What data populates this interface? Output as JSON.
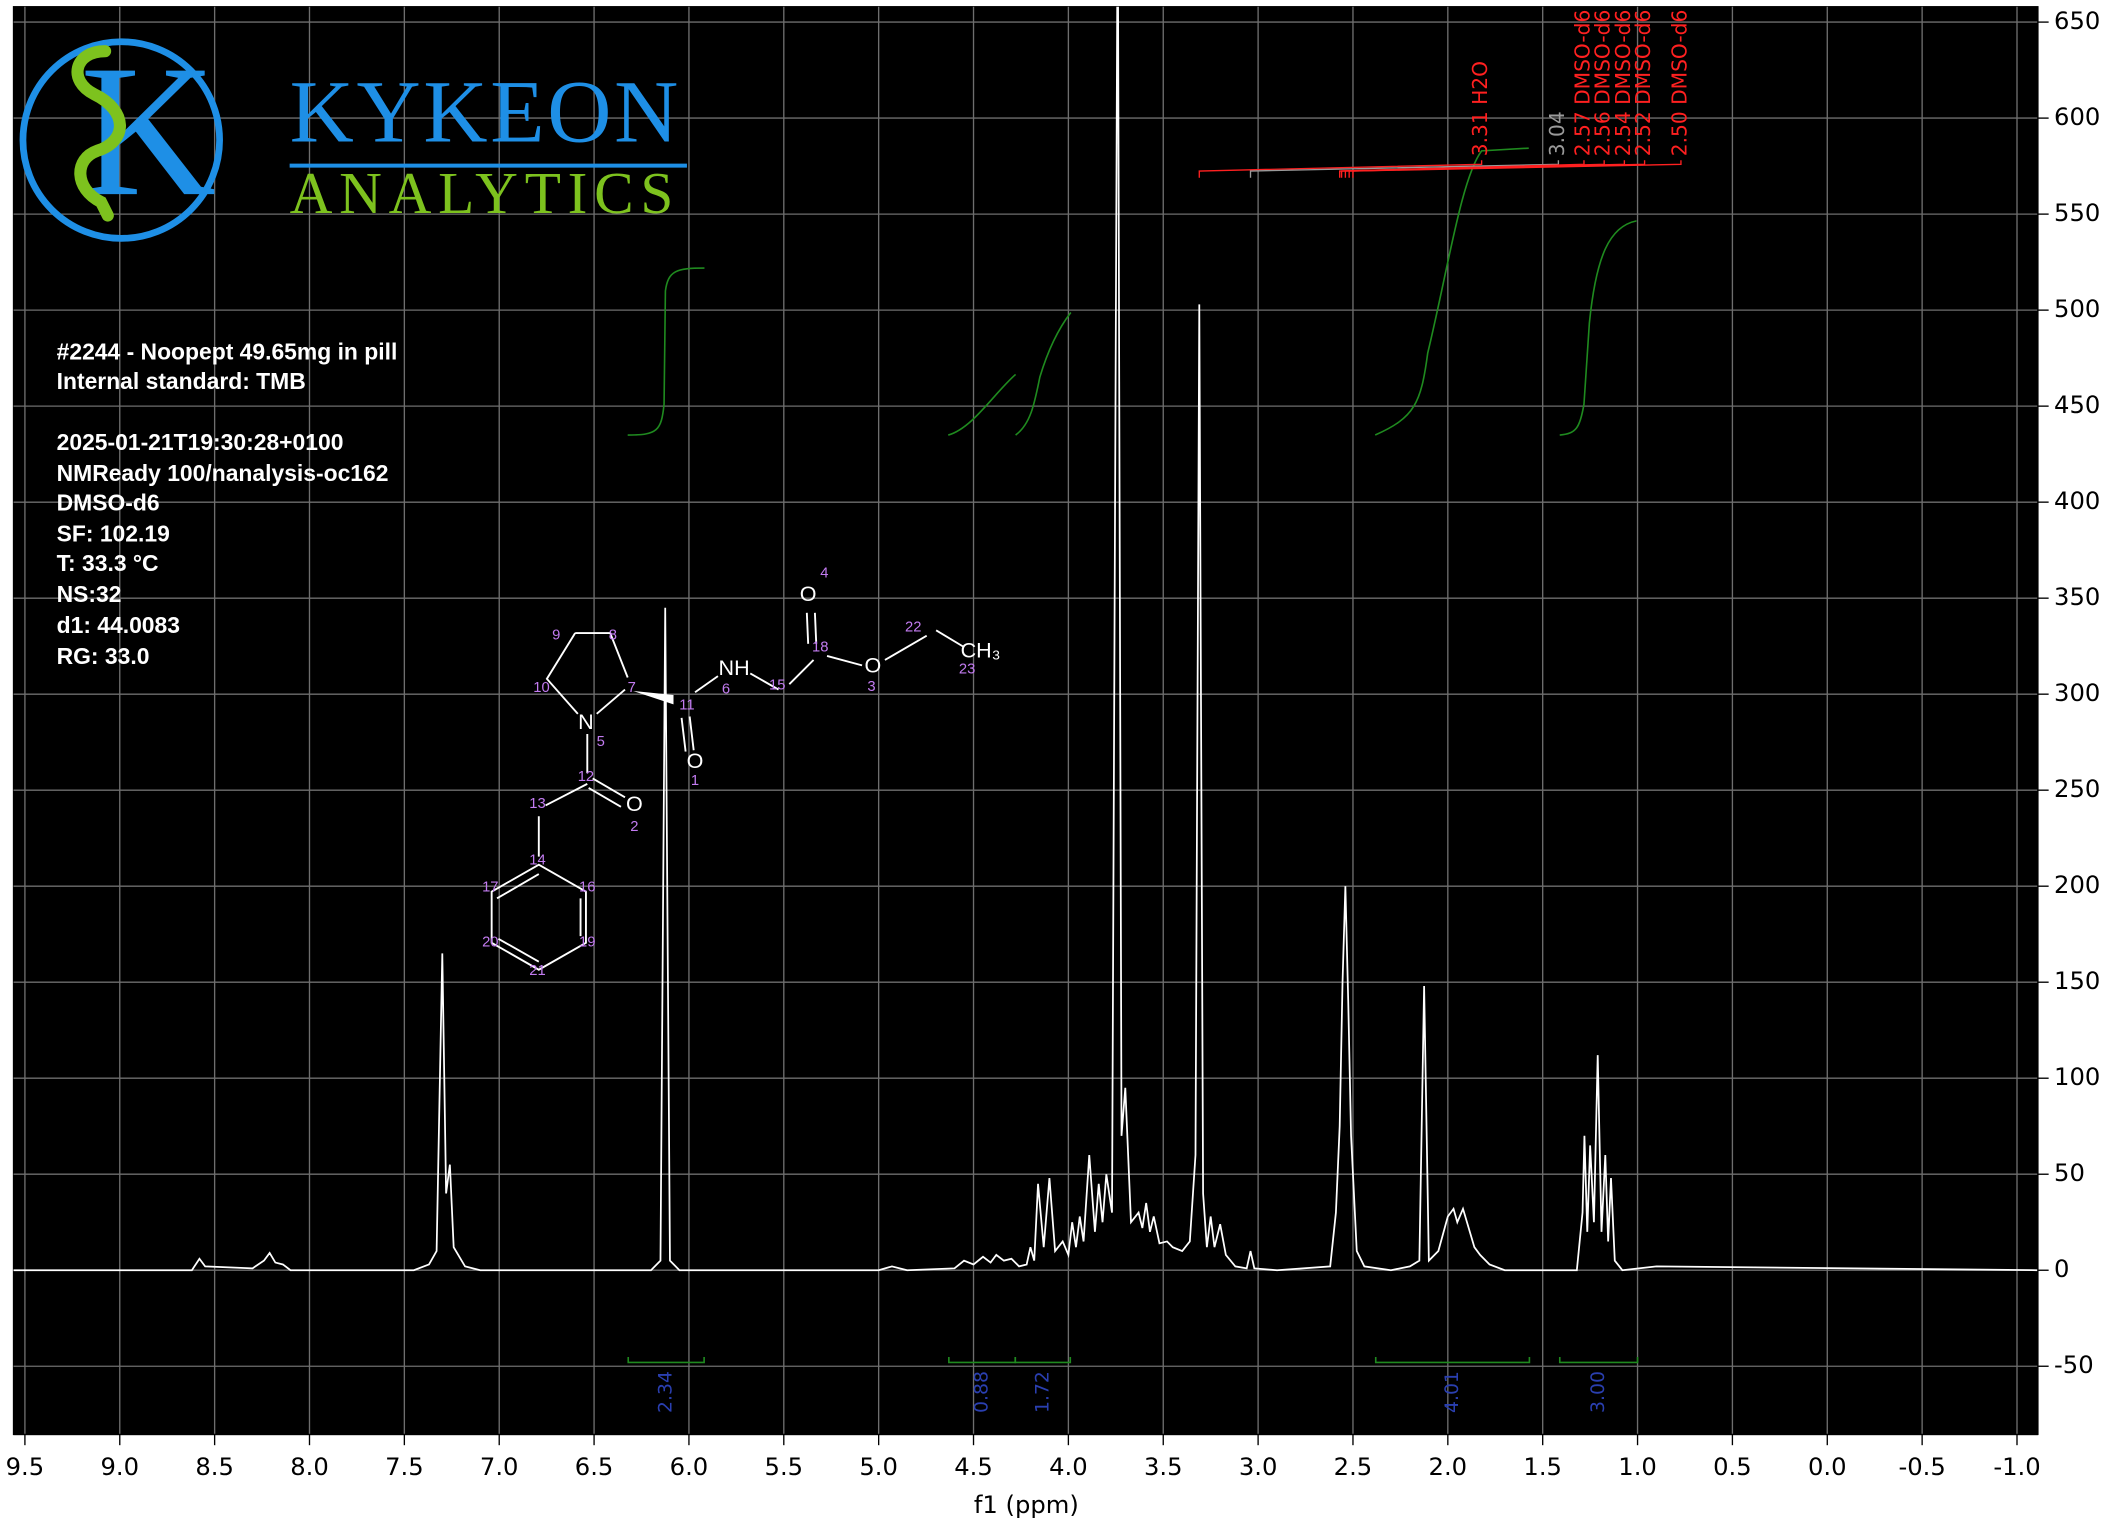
{
  "chart_data": {
    "type": "line",
    "xlabel": "f1 (ppm)",
    "x": [
      9.56,
      8.62,
      8.58,
      8.55,
      8.3,
      8.24,
      8.21,
      8.18,
      8.14,
      8.1,
      7.45,
      7.37,
      7.33,
      7.3,
      7.28,
      7.26,
      7.24,
      7.18,
      7.1,
      6.2,
      6.15,
      6.125,
      6.1,
      6.05,
      5.0,
      4.93,
      4.85,
      4.6,
      4.55,
      4.5,
      4.45,
      4.41,
      4.38,
      4.34,
      4.3,
      4.26,
      4.22,
      4.2,
      4.18,
      4.16,
      4.13,
      4.1,
      4.07,
      4.03,
      4.0,
      3.98,
      3.96,
      3.94,
      3.92,
      3.89,
      3.86,
      3.84,
      3.82,
      3.8,
      3.77,
      3.74,
      3.72,
      3.7,
      3.67,
      3.63,
      3.61,
      3.59,
      3.57,
      3.55,
      3.52,
      3.48,
      3.45,
      3.4,
      3.36,
      3.33,
      3.31,
      3.29,
      3.27,
      3.25,
      3.23,
      3.2,
      3.17,
      3.12,
      3.06,
      3.04,
      3.02,
      2.9,
      2.62,
      2.59,
      2.57,
      2.555,
      2.54,
      2.525,
      2.51,
      2.48,
      2.44,
      2.3,
      2.2,
      2.15,
      2.125,
      2.1,
      2.05,
      2.0,
      1.97,
      1.95,
      1.92,
      1.89,
      1.86,
      1.83,
      1.78,
      1.7,
      1.32,
      1.29,
      1.28,
      1.265,
      1.25,
      1.23,
      1.21,
      1.19,
      1.17,
      1.155,
      1.14,
      1.12,
      1.08,
      0.9,
      -1.11
    ],
    "values": [
      0,
      0,
      6,
      2,
      1,
      5,
      9,
      4,
      3,
      0,
      0,
      3,
      10,
      165,
      40,
      55,
      12,
      2,
      0,
      0,
      5,
      345,
      5,
      0,
      0,
      2,
      0,
      1,
      5,
      3,
      7,
      4,
      8,
      5,
      6,
      2,
      3,
      12,
      5,
      45,
      12,
      48,
      10,
      15,
      8,
      25,
      12,
      28,
      15,
      60,
      20,
      45,
      25,
      50,
      30,
      720,
      70,
      95,
      25,
      30,
      22,
      35,
      20,
      28,
      14,
      15,
      12,
      10,
      15,
      60,
      503,
      40,
      12,
      28,
      12,
      24,
      8,
      2,
      1,
      10,
      1,
      0,
      2,
      30,
      75,
      150,
      200,
      140,
      70,
      10,
      2,
      0,
      2,
      5,
      148,
      5,
      10,
      28,
      32,
      25,
      32,
      22,
      12,
      8,
      3,
      0,
      0,
      30,
      70,
      20,
      65,
      25,
      112,
      20,
      60,
      15,
      48,
      5,
      0,
      2,
      0
    ],
    "color": "#ffffff",
    "xlim": [
      9.56,
      -1.11
    ],
    "ylim": [
      -85.5,
      658
    ],
    "xticks": [
      {
        "value": 9.5,
        "label": "9.5"
      },
      {
        "value": 9,
        "label": "9.0"
      },
      {
        "value": 8.5,
        "label": "8.5"
      },
      {
        "value": 8,
        "label": "8.0"
      },
      {
        "value": 7.5,
        "label": "7.5"
      },
      {
        "value": 7,
        "label": "7.0"
      },
      {
        "value": 6.5,
        "label": "6.5"
      },
      {
        "value": 6,
        "label": "6.0"
      },
      {
        "value": 5.5,
        "label": "5.5"
      },
      {
        "value": 5,
        "label": "5.0"
      },
      {
        "value": 4.5,
        "label": "4.5"
      },
      {
        "value": 4,
        "label": "4.0"
      },
      {
        "value": 3.5,
        "label": "3.5"
      },
      {
        "value": 3,
        "label": "3.0"
      },
      {
        "value": 2.5,
        "label": "2.5"
      },
      {
        "value": 2,
        "label": "2.0"
      },
      {
        "value": 1.5,
        "label": "1.5"
      },
      {
        "value": 1,
        "label": "1.0"
      },
      {
        "value": 0.5,
        "label": "0.5"
      },
      {
        "value": 0,
        "label": "0.0"
      },
      {
        "value": -0.5,
        "label": "-0.5"
      },
      {
        "value": -1,
        "label": "-1.0"
      }
    ],
    "yticks": [
      -50,
      0,
      50,
      100,
      150,
      200,
      250,
      300,
      350,
      400,
      450,
      500,
      550,
      600,
      650
    ],
    "grid": true,
    "integrals": [
      {
        "range": [
          6.32,
          5.92
        ],
        "value": 2.34,
        "label": "2.34"
      },
      {
        "range": [
          4.63,
          4.28
        ],
        "value": 0.88,
        "label": "0.88"
      },
      {
        "range": [
          4.28,
          3.99
        ],
        "value": 1.72,
        "label": "1.72"
      },
      {
        "range": [
          2.38,
          1.57
        ],
        "value": 4.01,
        "label": "4.01"
      },
      {
        "range": [
          1.41,
          1.0
        ],
        "value": 3,
        "label": "3.00"
      }
    ],
    "peak_labels": [
      {
        "ppm": 3.31,
        "label": "3.31 H2O",
        "color": "#ff2020"
      },
      {
        "ppm": 3.04,
        "label": "3.04",
        "color": "#9a9a9a"
      },
      {
        "ppm": 2.57,
        "label": "2.57 DMSO-d6",
        "color": "#ff2020"
      },
      {
        "ppm": 2.56,
        "label": "2.56 DMSO-d6",
        "color": "#ff2020"
      },
      {
        "ppm": 2.54,
        "label": "2.54 DMSO-d6",
        "color": "#ff2020"
      },
      {
        "ppm": 2.52,
        "label": "2.52 DMSO-d6",
        "color": "#ff2020"
      },
      {
        "ppm": 2.5,
        "label": "2.50 DMSO-d6",
        "color": "#ff2020"
      }
    ]
  },
  "logo": {
    "mark": "K",
    "name": "KYKEON",
    "tagline": "ANALYTICS"
  },
  "sample": [
    "#2244 - Noopept 49.65mg in pill",
    "Internal standard: TMB"
  ],
  "parameters": [
    "2025-01-21T19:30:28+0100",
    "NMReady 100/nanalysis-oc162",
    "DMSO-d6",
    "SF: 102.19",
    "T: 33.3 °C",
    "NS:32",
    "d1: 44.0083",
    "RG: 33.0"
  ],
  "structure": {
    "atoms": [
      "O",
      "CH₃",
      "O",
      "NH",
      "N",
      "O",
      "O"
    ],
    "numbers": [
      "4",
      "22",
      "23",
      "18",
      "3",
      "6",
      "15",
      "9",
      "8",
      "10",
      "7",
      "11",
      "5",
      "1",
      "12",
      "13",
      "2",
      "14",
      "17",
      "16",
      "20",
      "19",
      "21"
    ]
  }
}
